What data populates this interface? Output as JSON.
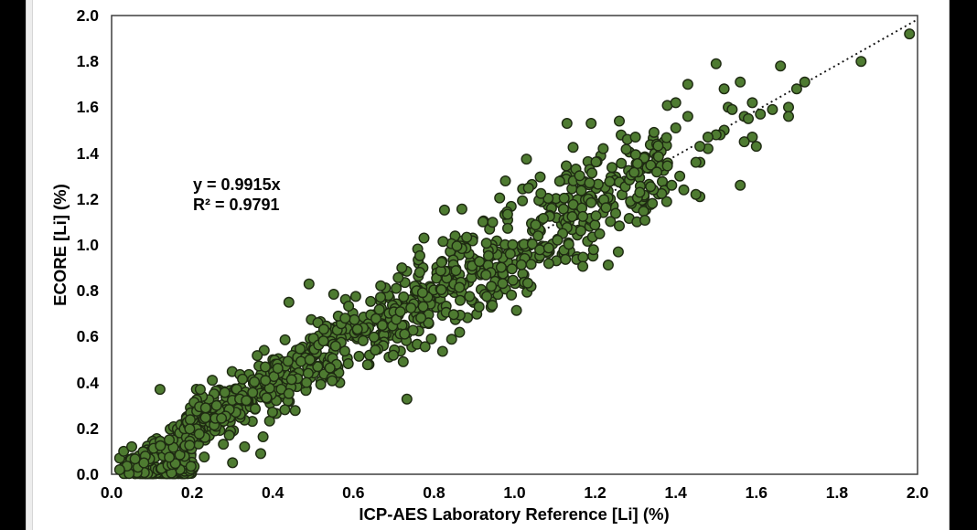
{
  "chart_data": {
    "type": "scatter",
    "title": "",
    "xlabel": "ICP-AES Laboratory Reference [Li] (%)",
    "ylabel": "ECORE [Li] (%)",
    "xlim": [
      0.0,
      2.0
    ],
    "ylim": [
      0.0,
      2.0
    ],
    "xticks": [
      "0.0",
      "0.2",
      "0.4",
      "0.6",
      "0.8",
      "1.0",
      "1.2",
      "1.4",
      "1.6",
      "1.8",
      "2.0"
    ],
    "yticks": [
      "0.0",
      "0.2",
      "0.4",
      "0.6",
      "0.8",
      "1.0",
      "1.2",
      "1.4",
      "1.6",
      "1.8",
      "2.0"
    ],
    "grid": false,
    "legend": null,
    "annotation": {
      "equation": "y = 0.9915x",
      "r_squared": "R² = 0.9791"
    },
    "trendline": {
      "slope": 0.9915,
      "intercept": 0,
      "x_start": 0.02,
      "x_end": 1.995,
      "style": "dotted",
      "color": "#161616"
    },
    "marker": {
      "shape": "circle",
      "fill": "#4e7b31",
      "stroke": "#1e2a12",
      "radius_px": 5.3,
      "stroke_width": 1.4
    },
    "axis_color": "#3f3f3f",
    "background": "#ffffff",
    "point_generator": {
      "seed": 1337,
      "clusters": [
        {
          "name": "origin-axis-blob",
          "n": 200,
          "x_min": 0.05,
          "x_max": 0.2,
          "x_pow": 1.0,
          "y_mode": "uniform_pow",
          "y_scale": 0.03,
          "y_pow": 2
        },
        {
          "name": "origin-spread",
          "n": 135,
          "x_min": 0.03,
          "x_max": 0.21,
          "x_pow": 1.0,
          "y_mode": "triangle",
          "y_slope_max": 1.45
        },
        {
          "name": "main-band",
          "n": 755,
          "x_min": 0.18,
          "x_max": 1.16,
          "x_pow": 1.1,
          "y_mode": "gauss",
          "sigma_base": 0.04,
          "sigma_slope": 0.075
        },
        {
          "name": "upper-band",
          "n": 130,
          "x_min": 1.16,
          "x_max": 1.38,
          "x_pow": 1.0,
          "y_mode": "gauss",
          "sigma_base": 0.105,
          "sigma_slope": 0
        }
      ]
    },
    "explicit_points": [
      [
        1.98,
        1.92
      ],
      [
        1.86,
        1.8
      ],
      [
        1.72,
        1.71
      ],
      [
        1.7,
        1.68
      ],
      [
        1.66,
        1.78
      ],
      [
        1.64,
        1.59
      ],
      [
        1.68,
        1.6
      ],
      [
        1.68,
        1.56
      ],
      [
        1.61,
        1.57
      ],
      [
        1.59,
        1.62
      ],
      [
        1.57,
        1.56
      ],
      [
        1.58,
        1.55
      ],
      [
        1.56,
        1.71
      ],
      [
        1.56,
        1.26
      ],
      [
        1.6,
        1.43
      ],
      [
        1.59,
        1.47
      ],
      [
        1.57,
        1.45
      ],
      [
        1.53,
        1.6
      ],
      [
        1.54,
        1.59
      ],
      [
        1.52,
        1.68
      ],
      [
        1.52,
        1.5
      ],
      [
        1.51,
        1.48
      ],
      [
        1.5,
        1.79
      ],
      [
        1.5,
        1.48
      ],
      [
        1.48,
        1.47
      ],
      [
        1.48,
        1.42
      ],
      [
        1.46,
        1.43
      ],
      [
        1.46,
        1.36
      ],
      [
        1.46,
        1.21
      ],
      [
        1.45,
        1.36
      ],
      [
        1.45,
        1.22
      ],
      [
        1.43,
        1.7
      ],
      [
        1.43,
        1.56
      ],
      [
        1.42,
        1.24
      ],
      [
        1.41,
        1.3
      ],
      [
        1.4,
        1.62
      ],
      [
        1.4,
        1.51
      ],
      [
        1.39,
        1.26
      ],
      [
        1.13,
        1.53
      ],
      [
        1.19,
        1.53
      ],
      [
        1.22,
        1.42
      ],
      [
        1.26,
        1.54
      ],
      [
        1.28,
        1.46
      ],
      [
        1.3,
        1.47
      ],
      [
        0.12,
        0.37
      ],
      [
        0.25,
        0.41
      ],
      [
        0.22,
        0.37
      ],
      [
        0.3,
        0.05
      ],
      [
        0.33,
        0.12
      ],
      [
        0.37,
        0.09
      ],
      [
        0.49,
        0.83
      ],
      [
        0.44,
        0.75
      ],
      [
        0.02,
        0.02
      ],
      [
        0.02,
        0.07
      ],
      [
        0.03,
        0.1
      ],
      [
        0.05,
        0.12
      ]
    ]
  }
}
